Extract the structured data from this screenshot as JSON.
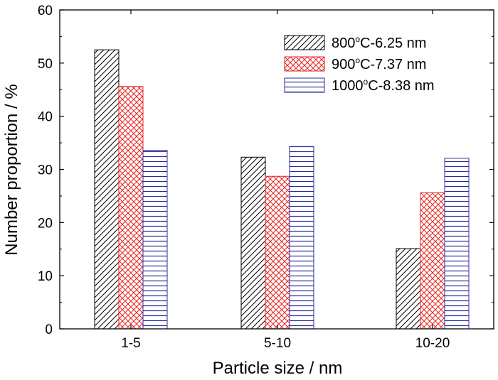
{
  "chart_data": {
    "type": "bar",
    "categories": [
      "1-5",
      "5-10",
      "10-20"
    ],
    "series": [
      {
        "name": "800°C-6.25 nm",
        "values": [
          52.5,
          32.3,
          15.1
        ],
        "color": "#000000",
        "pattern": "diagonal"
      },
      {
        "name": "900°C-7.37 nm",
        "values": [
          45.6,
          28.7,
          25.6
        ],
        "color": "#e8231f",
        "pattern": "crosshatch"
      },
      {
        "name": "1000°C-8.38 nm",
        "values": [
          33.6,
          34.3,
          32.1
        ],
        "color": "#2b2b9e",
        "pattern": "horizontal"
      }
    ],
    "xlabel": "Particle size / nm",
    "ylabel": "Number proportion / %",
    "ylim": [
      0,
      60
    ],
    "yticks": [
      0,
      10,
      20,
      30,
      40,
      50,
      60
    ],
    "legend_position": "top-right",
    "grid": false
  },
  "legend": [
    {
      "prefix": "800",
      "sup": "o",
      "suffix": "C-6.25 nm"
    },
    {
      "prefix": "900",
      "sup": "o",
      "suffix": "C-7.37 nm"
    },
    {
      "prefix": "1000",
      "sup": "o",
      "suffix": "C-8.38 nm"
    }
  ]
}
